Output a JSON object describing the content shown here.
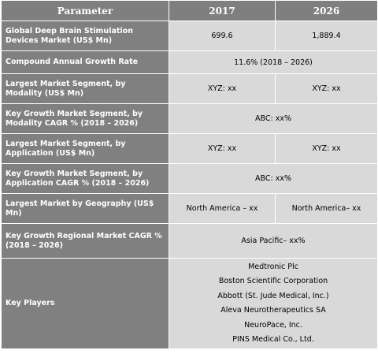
{
  "header": {
    "parameter": "Parameter",
    "year1": "2017",
    "year2": "2026"
  },
  "rows": [
    {
      "label": "Global Deep Brain Stimulation Devices Market (US$ Mn)",
      "v2017": "699.6",
      "v2026": "1,889.4"
    },
    {
      "label": "Compound Annual Growth Rate",
      "merged": "11.6% (2018 – 2026)"
    },
    {
      "label": "Largest Market Segment, by Modality (US$ Mn)",
      "v2017": "XYZ: xx",
      "v2026": "XYZ: xx"
    },
    {
      "label": "Key Growth Market Segment, by Modality CAGR % (2018 – 2026)",
      "merged": "ABC: xx%"
    },
    {
      "label": "Largest Market Segment, by Application (US$ Mn)",
      "v2017": "XYZ: xx",
      "v2026": "XYZ: xx"
    },
    {
      "label": "Key Growth Market Segment, by Application CAGR % (2018 – 2026)",
      "merged": "ABC: xx%"
    },
    {
      "label": "Largest Market by Geography (US$ Mn)",
      "v2017": "North America – xx",
      "v2026": "North America– xx"
    },
    {
      "label": "Key Growth Regional Market CAGR % (2018 – 2026)",
      "merged": "Asia Pacific– xx%"
    }
  ],
  "key_players": {
    "label": "Key Players",
    "players": [
      "Medtronic Plc",
      "Boston Scientific Corporation",
      "Abbott (St. Jude Medical, Inc.)",
      "Aleva Neurotherapeutics SA",
      "NeuroPace, Inc.",
      "PINS Medical Co., Ltd."
    ]
  }
}
